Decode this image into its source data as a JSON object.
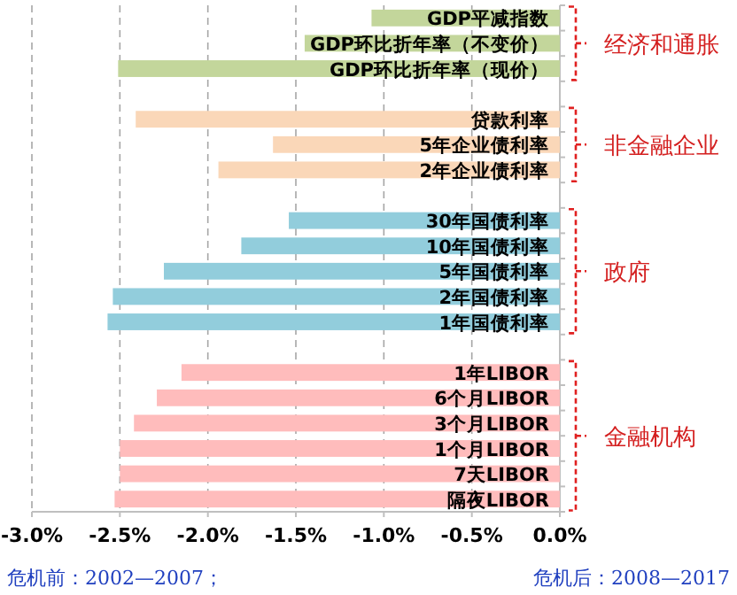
{
  "chart_data": {
    "type": "bar",
    "orientation": "horizontal",
    "grid": "x",
    "categories": [
      "GDP平减指数",
      "GDP环比折年率（不变价）",
      "GDP环比折年率（现价）",
      null,
      "贷款利率",
      "5年企业债利率",
      "2年企业债利率",
      null,
      "30年国债利率",
      "10年国债利率",
      "5年国债利率",
      "2年国债利率",
      "1年国债利率",
      null,
      "1年LIBOR",
      "6个月LIBOR",
      "3个月LIBOR",
      "1个月LIBOR",
      "7天LIBOR",
      "隔夜LIBOR"
    ],
    "values": [
      -1.07,
      -1.45,
      -2.51,
      null,
      -2.41,
      -1.63,
      -1.94,
      null,
      -1.54,
      -1.81,
      -2.25,
      -2.54,
      -2.57,
      null,
      -2.15,
      -2.29,
      -2.42,
      -2.5,
      -2.5,
      -2.53
    ],
    "colors": [
      "#c3d69b",
      "#c3d69b",
      "#c3d69b",
      null,
      "#fad7b8",
      "#fad7b8",
      "#fad7b8",
      null,
      "#92cddc",
      "#92cddc",
      "#92cddc",
      "#92cddc",
      "#92cddc",
      null,
      "#ffbcbc",
      "#ffbcbc",
      "#ffbcbc",
      "#ffbcbc",
      "#ffbcbc",
      "#ffbcbc"
    ],
    "xlim": [
      -3,
      0
    ],
    "xticks": [
      {
        "value": -3,
        "label": "-3.0%"
      },
      {
        "value": -2.5,
        "label": "-2.5%"
      },
      {
        "value": -2,
        "label": "-2.0%"
      },
      {
        "value": -1.5,
        "label": "-1.5%"
      },
      {
        "value": -1,
        "label": "-1.0%"
      },
      {
        "value": -0.5,
        "label": "-0.5%"
      },
      {
        "value": 0,
        "label": "0.0%"
      }
    ],
    "annotations": [
      "经济和通胀",
      "非金融企业",
      "政府",
      "金融机构",
      "危机前：2002—2007；",
      "危机后：2008—2017"
    ]
  }
}
